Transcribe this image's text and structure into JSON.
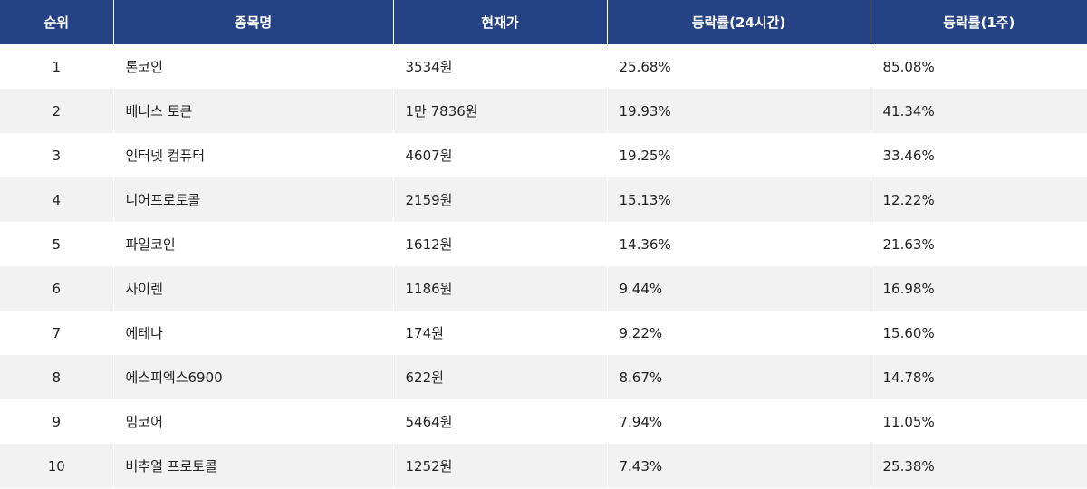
{
  "chart_data": {
    "type": "table",
    "columns": [
      "순위",
      "종목명",
      "현재가",
      "등락률(24시간)",
      "등락률(1주)"
    ],
    "rows": [
      [
        "1",
        "톤코인",
        "3534원",
        "25.68%",
        "85.08%"
      ],
      [
        "2",
        "베니스 토큰",
        "1만 7836원",
        "19.93%",
        "41.34%"
      ],
      [
        "3",
        "인터넷 컴퓨터",
        "4607원",
        "19.25%",
        "33.46%"
      ],
      [
        "4",
        "니어프로토콜",
        "2159원",
        "15.13%",
        "12.22%"
      ],
      [
        "5",
        "파일코인",
        "1612원",
        "14.36%",
        "21.63%"
      ],
      [
        "6",
        "사이렌",
        "1186원",
        "9.44%",
        "16.98%"
      ],
      [
        "7",
        "에테나",
        "174원",
        "9.22%",
        "15.60%"
      ],
      [
        "8",
        "에스피엑스6900",
        "622원",
        "8.67%",
        "14.78%"
      ],
      [
        "9",
        "밈코어",
        "5464원",
        "7.94%",
        "11.05%"
      ],
      [
        "10",
        "버추얼 프로토콜",
        "1252원",
        "7.43%",
        "25.38%"
      ]
    ],
    "colors": {
      "header_background": "#254284",
      "header_text": "#ffffff",
      "row_alt_background": "#f2f2f2"
    }
  }
}
